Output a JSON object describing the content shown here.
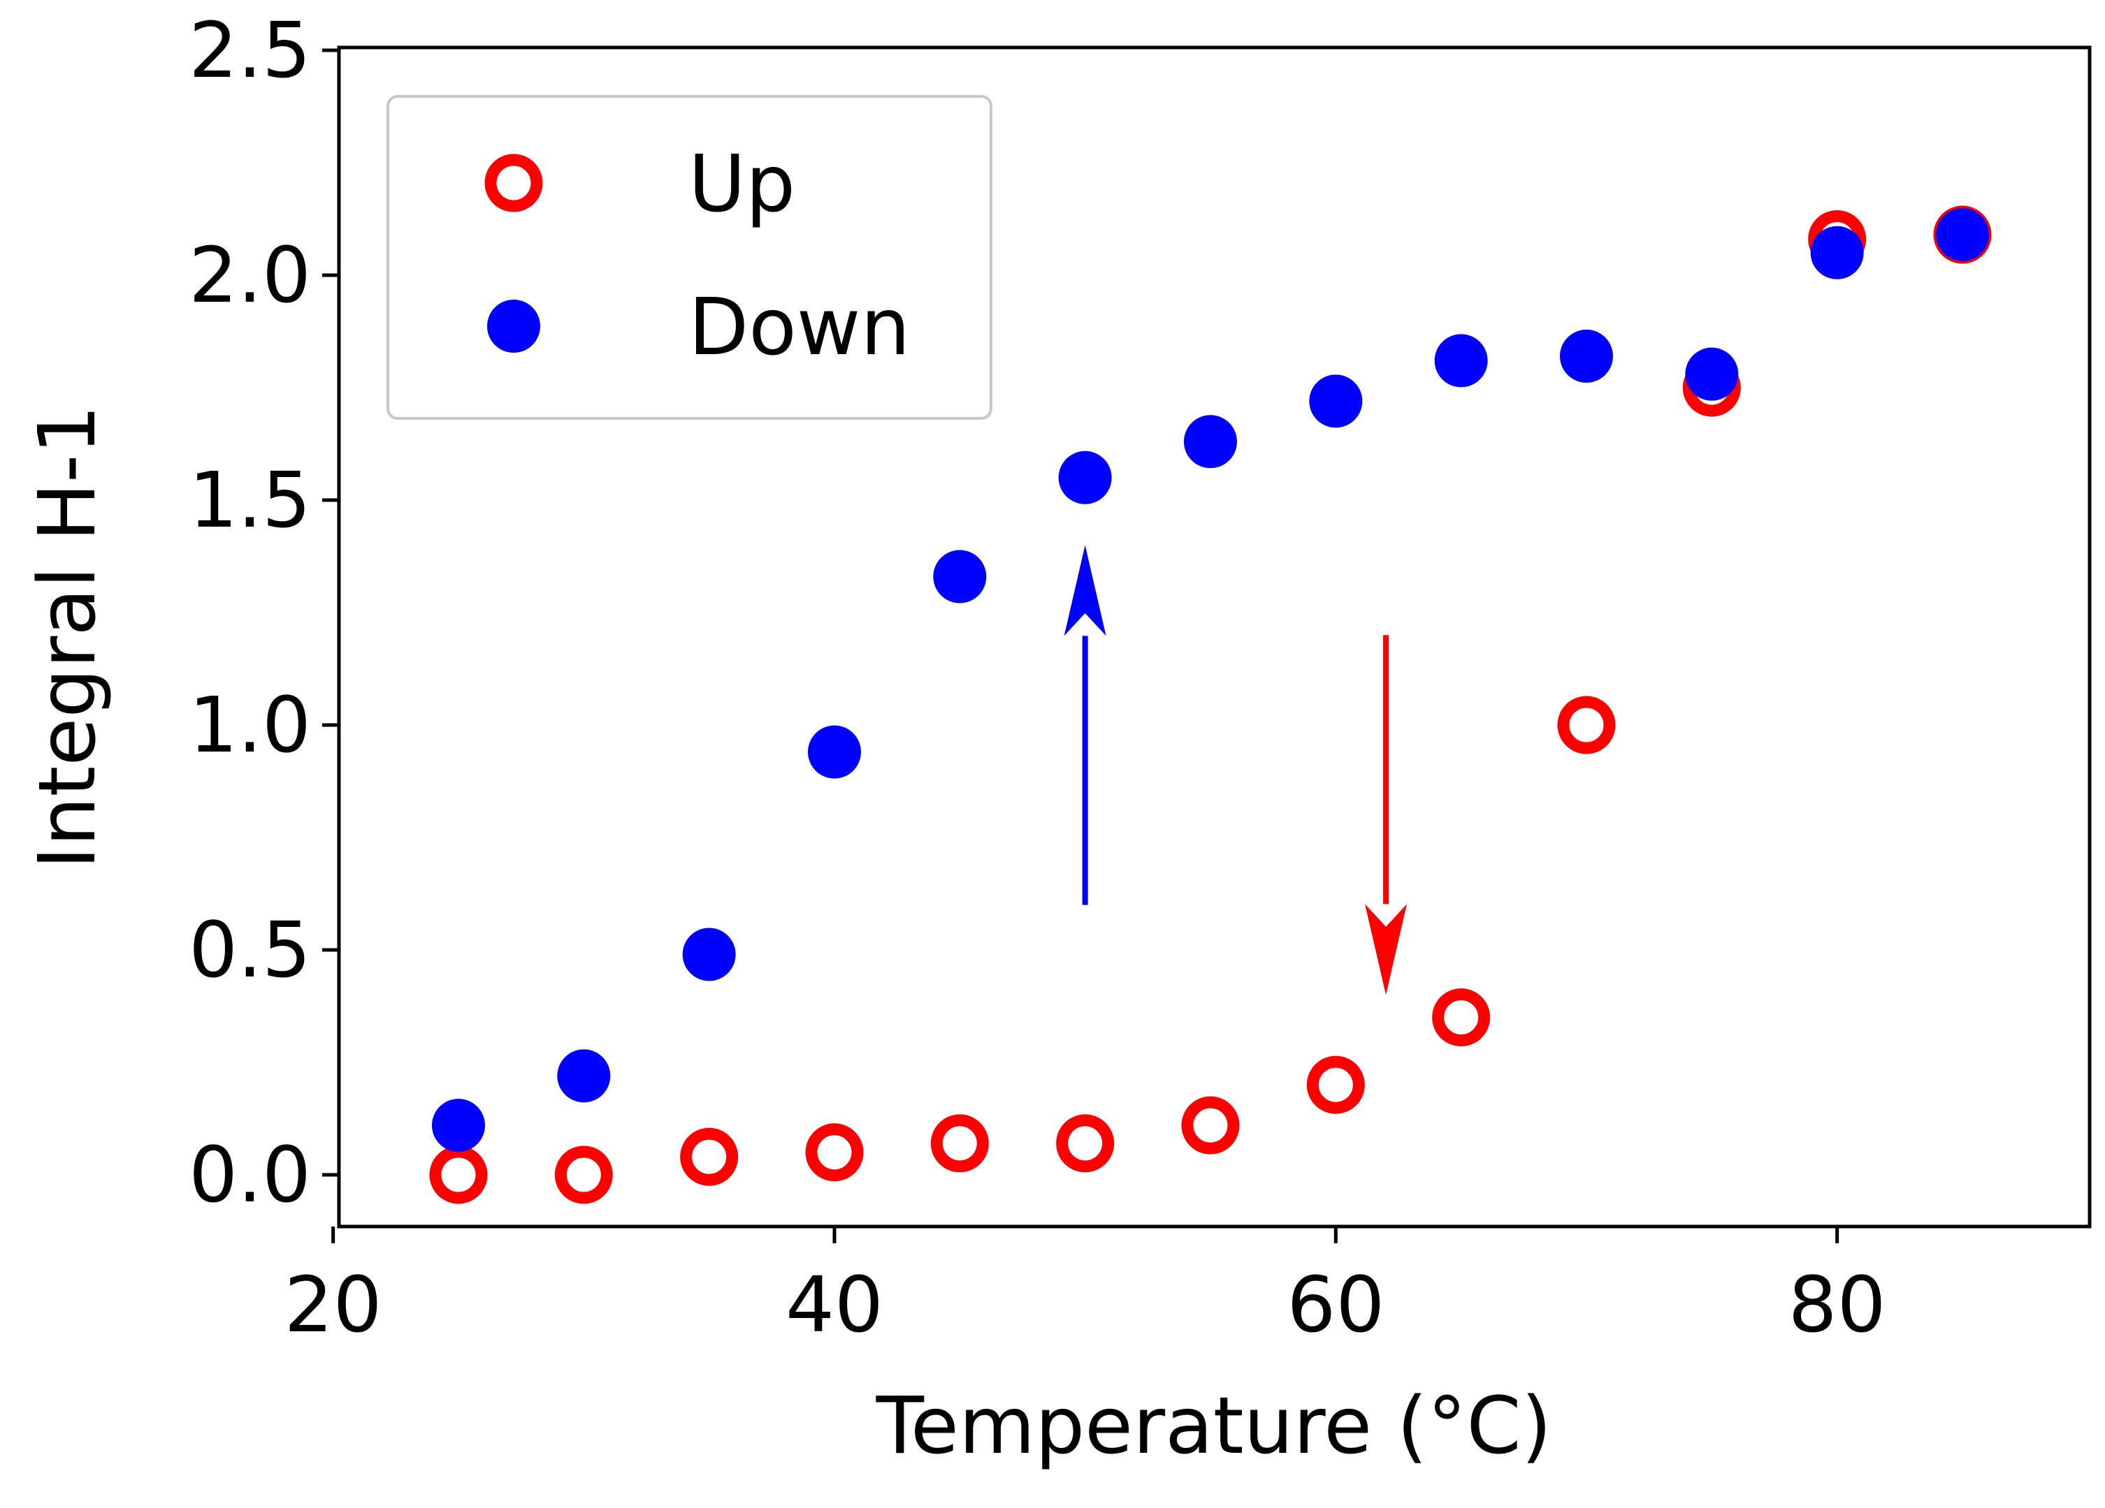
{
  "chart_data": {
    "type": "scatter",
    "title": "",
    "xlabel": "Temperature (°C)",
    "ylabel": "Integral H-1",
    "xlim": [
      20,
      90
    ],
    "ylim": [
      -0.1,
      2.5
    ],
    "xticks": [
      20,
      40,
      60,
      80
    ],
    "xtick_labels": [
      "20",
      "40",
      "60",
      "80"
    ],
    "yticks": [
      0.0,
      0.5,
      1.0,
      1.5,
      2.0,
      2.5
    ],
    "ytick_labels": [
      "0.0",
      "0.5",
      "1.0",
      "1.5",
      "2.0",
      "2.5"
    ],
    "grid": false,
    "legend_position": "top-left",
    "series": [
      {
        "name": "Up",
        "marker": "open-circle",
        "color": "#ff0000",
        "x": [
          25,
          30,
          35,
          40,
          45,
          50,
          55,
          60,
          65,
          70,
          75,
          80,
          85
        ],
        "y": [
          0.0,
          0.0,
          0.04,
          0.05,
          0.07,
          0.07,
          0.11,
          0.2,
          0.35,
          1.0,
          1.75,
          2.08,
          2.09
        ]
      },
      {
        "name": "Down",
        "marker": "filled-circle",
        "color": "#0000ff",
        "x": [
          25,
          30,
          35,
          40,
          45,
          50,
          55,
          60,
          65,
          70,
          75,
          80,
          85
        ],
        "y": [
          0.11,
          0.22,
          0.49,
          0.94,
          1.33,
          1.55,
          1.63,
          1.72,
          1.81,
          1.82,
          1.78,
          2.05,
          2.09
        ]
      }
    ],
    "annotations": [
      {
        "type": "arrow",
        "direction": "up",
        "color": "#0000ff",
        "x": 50,
        "y_from": 0.6,
        "y_to": 1.4
      },
      {
        "type": "arrow",
        "direction": "down",
        "color": "#ff0000",
        "x": 62,
        "y_from": 1.2,
        "y_to": 0.4
      }
    ]
  }
}
